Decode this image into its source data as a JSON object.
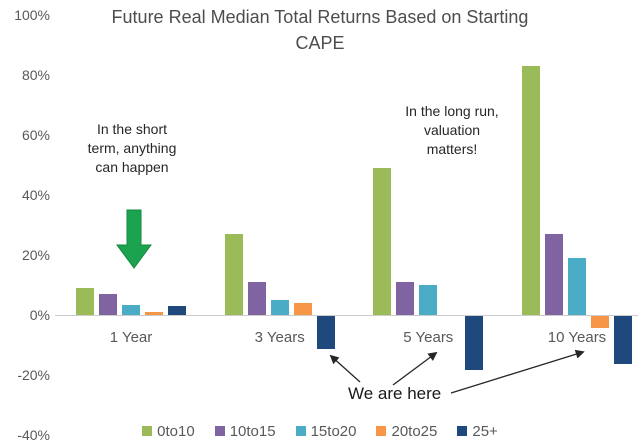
{
  "chart_data": {
    "type": "bar",
    "title": "Future Real Median Total Returns Based on Starting CAPE",
    "title_lines": [
      "Future Real Median Total Returns Based on Starting",
      "CAPE"
    ],
    "categories": [
      "1 Year",
      "3 Years",
      "5 Years",
      "10 Years"
    ],
    "series": [
      {
        "name": "0to10",
        "color": "#9bbb59",
        "values": [
          9,
          27,
          49,
          83
        ]
      },
      {
        "name": "10to15",
        "color": "#8064a2",
        "values": [
          7,
          11,
          11,
          27
        ]
      },
      {
        "name": "15to20",
        "color": "#4bacc6",
        "values": [
          3.5,
          5,
          10,
          19
        ]
      },
      {
        "name": "20to25",
        "color": "#f79646",
        "values": [
          1,
          4,
          0,
          -4
        ]
      },
      {
        "name": "25+",
        "color": "#1f497d",
        "values": [
          3,
          -11,
          -18,
          -16
        ]
      }
    ],
    "y_ticks": [
      {
        "label": "100%",
        "value": 100
      },
      {
        "label": "80%",
        "value": 80
      },
      {
        "label": "60%",
        "value": 60
      },
      {
        "label": "40%",
        "value": 40
      },
      {
        "label": "20%",
        "value": 20
      },
      {
        "label": "0%",
        "value": 0
      },
      {
        "label": "-20%",
        "value": -20
      },
      {
        "label": "-40%",
        "value": -40
      }
    ],
    "ylim": [
      -40,
      100
    ],
    "xlabel": "",
    "ylabel": "",
    "grid": false,
    "legend_position": "bottom",
    "annotations": {
      "short_term": {
        "lines": [
          "In the short",
          "term, anything",
          "can happen"
        ]
      },
      "long_run": {
        "lines": [
          "In the long run,",
          "valuation",
          "matters!"
        ]
      },
      "we_are_here": {
        "label": "We are here"
      },
      "green_arrow_color": "#1ca350"
    }
  }
}
